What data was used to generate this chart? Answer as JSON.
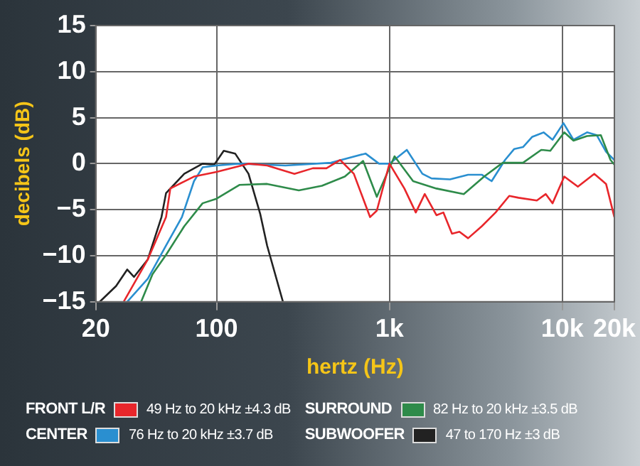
{
  "chart_data": {
    "type": "line",
    "xlabel": "hertz (Hz)",
    "ylabel": "decibels (dB)",
    "log": "x",
    "xlim": [
      20,
      20000
    ],
    "xticks": [
      20,
      100,
      {
        "value": 1000,
        "label": "1k"
      },
      {
        "value": 10000,
        "label": "10k"
      },
      {
        "value": 20000,
        "label": "20k"
      }
    ],
    "ylim": [
      -15,
      15
    ],
    "yticks": [
      {
        "value": -15,
        "label": "−15"
      },
      {
        "value": -10,
        "label": "−10"
      },
      {
        "value": -5,
        "label": "−5"
      },
      0,
      5,
      10,
      15
    ],
    "grid": true,
    "marker": "none",
    "line_style": "solid",
    "legend": "bottom",
    "annotations": [
      "49 Hz to 20 kHz ±4.3 dB",
      "82 Hz to 20 kHz ±3.5 dB",
      "76 Hz to 20 kHz ±3.7 dB",
      "47 to 170 Hz ±3 dB"
    ],
    "series": [
      {
        "name": "FRONT L/R",
        "color": "#e8262b",
        "x": [
          29,
          40,
          51,
          54,
          74,
          100,
          153,
          196,
          282,
          360,
          432,
          519,
          622,
          772,
          845,
          1000,
          1220,
          1420,
          1600,
          1870,
          2050,
          2300,
          2540,
          2850,
          3420,
          4110,
          4930,
          5580,
          7120,
          8020,
          8780,
          10260,
          12300,
          15300,
          17900,
          20000
        ],
        "values": [
          -15,
          -10.4,
          -5.8,
          -2.7,
          -1.4,
          -0.9,
          0,
          -0.2,
          -1.1,
          -0.5,
          -0.5,
          0.4,
          -1.1,
          -5.8,
          -5.1,
          0,
          -2.7,
          -5.3,
          -3.3,
          -5.6,
          -5.3,
          -7.6,
          -7.4,
          -8.1,
          -6.8,
          -5.3,
          -3.5,
          -3.7,
          -4,
          -3.3,
          -4.3,
          -1.4,
          -2.5,
          -1.1,
          -2.2,
          -5.8
        ]
      },
      {
        "name": "SURROUND",
        "color": "#2e8b4a",
        "x": [
          36.6,
          42.6,
          51,
          65,
          83,
          100,
          136,
          196,
          299,
          407,
          552,
          704,
          845,
          1070,
          1370,
          1870,
          2690,
          3530,
          4520,
          5920,
          7550,
          8520,
          10260,
          11600,
          13900,
          16700,
          19000,
          20000
        ],
        "values": [
          -15,
          -12,
          -9.9,
          -6.8,
          -4.3,
          -3.8,
          -2.3,
          -2.2,
          -2.9,
          -2.4,
          -1.4,
          0.3,
          -3.6,
          0.8,
          -1.9,
          -2.7,
          -3.3,
          -1.4,
          0.1,
          0.1,
          1.5,
          1.4,
          3.4,
          2.5,
          3,
          3.1,
          0.4,
          -0.1
        ]
      },
      {
        "name": "CENTER",
        "color": "#2a8fd0",
        "x": [
          30.4,
          40,
          51,
          63,
          74,
          83,
          100,
          136,
          250,
          459,
          727,
          870,
          1000,
          1260,
          1550,
          1750,
          2240,
          2850,
          3420,
          3900,
          4660,
          5270,
          5920,
          6680,
          7790,
          8780,
          10150,
          11600,
          13900,
          15800,
          17900,
          20000
        ],
        "values": [
          -15,
          -12.5,
          -8.9,
          -5.8,
          -1.9,
          -0.4,
          -0.2,
          0,
          -0.2,
          0.1,
          1.1,
          0,
          0,
          1.5,
          -1.1,
          -1.6,
          -1.7,
          -1.2,
          -1.2,
          -1.9,
          0.4,
          1.6,
          1.8,
          2.9,
          3.4,
          2.6,
          4.4,
          2.6,
          3.4,
          3.1,
          1.3,
          0.4
        ]
      },
      {
        "name": "SUBWOOFER",
        "color": "#222222",
        "x": [
          21.1,
          26.2,
          30.4,
          33.3,
          40,
          48,
          51,
          65,
          83,
          97,
          110,
          128,
          153,
          179,
          196,
          242
        ],
        "values": [
          -15,
          -13.3,
          -11.5,
          -12.3,
          -10.4,
          -5.8,
          -3.2,
          -1.1,
          0,
          -0.1,
          1.4,
          1.1,
          -1.1,
          -5.5,
          -8.9,
          -15
        ]
      }
    ]
  }
}
